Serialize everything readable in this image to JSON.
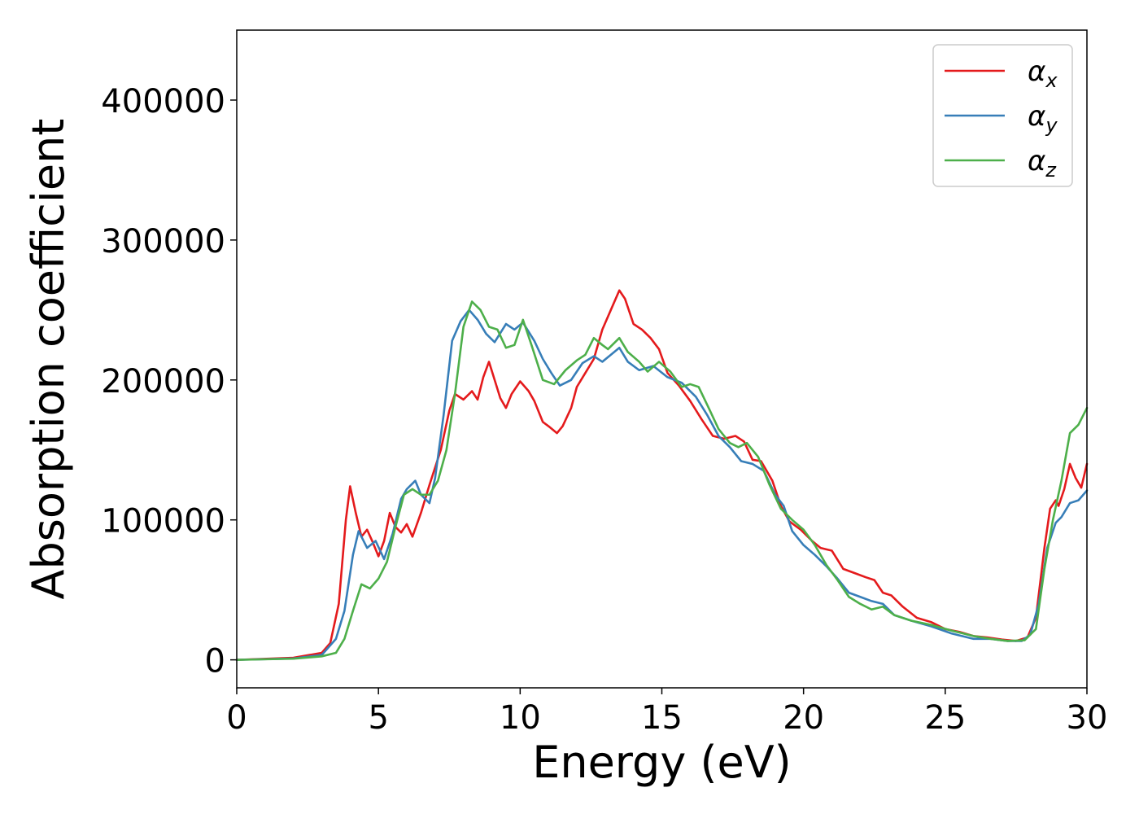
{
  "chart_data": {
    "type": "line",
    "title": "",
    "xlabel": "Energy (eV)",
    "ylabel": "Absorption coefficient",
    "xlim": [
      0,
      30
    ],
    "ylim": [
      -20000,
      450000
    ],
    "xticks": [
      0,
      5,
      10,
      15,
      20,
      25,
      30
    ],
    "xtick_labels": [
      "0",
      "5",
      "10",
      "15",
      "20",
      "25",
      "30"
    ],
    "yticks": [
      0,
      100000,
      200000,
      300000,
      400000
    ],
    "ytick_labels": [
      "0",
      "100000",
      "200000",
      "300000",
      "400000"
    ],
    "grid": false,
    "legend": "top-right",
    "series": [
      {
        "name": "α_x",
        "symbol": "α",
        "sub": "x",
        "color": "#e41a1c",
        "points": [
          [
            0,
            0
          ],
          [
            2,
            1500
          ],
          [
            3,
            5000
          ],
          [
            3.3,
            12000
          ],
          [
            3.6,
            40000
          ],
          [
            3.85,
            100000
          ],
          [
            4.0,
            124000
          ],
          [
            4.2,
            105000
          ],
          [
            4.4,
            88000
          ],
          [
            4.6,
            93000
          ],
          [
            4.8,
            84000
          ],
          [
            5.0,
            74000
          ],
          [
            5.2,
            85000
          ],
          [
            5.4,
            105000
          ],
          [
            5.6,
            95000
          ],
          [
            5.8,
            91000
          ],
          [
            6.0,
            97000
          ],
          [
            6.2,
            88000
          ],
          [
            6.5,
            105000
          ],
          [
            6.8,
            125000
          ],
          [
            7.2,
            150000
          ],
          [
            7.5,
            178000
          ],
          [
            7.7,
            190000
          ],
          [
            8.0,
            186000
          ],
          [
            8.3,
            192000
          ],
          [
            8.5,
            186000
          ],
          [
            8.7,
            202000
          ],
          [
            8.9,
            213000
          ],
          [
            9.1,
            200000
          ],
          [
            9.3,
            187000
          ],
          [
            9.5,
            180000
          ],
          [
            9.7,
            190000
          ],
          [
            10.0,
            199000
          ],
          [
            10.3,
            192000
          ],
          [
            10.5,
            185000
          ],
          [
            10.8,
            170000
          ],
          [
            11.0,
            167000
          ],
          [
            11.3,
            162000
          ],
          [
            11.5,
            167000
          ],
          [
            11.8,
            180000
          ],
          [
            12.0,
            195000
          ],
          [
            12.3,
            205000
          ],
          [
            12.6,
            215000
          ],
          [
            12.9,
            236000
          ],
          [
            13.2,
            250000
          ],
          [
            13.5,
            264000
          ],
          [
            13.7,
            258000
          ],
          [
            14.0,
            240000
          ],
          [
            14.3,
            236000
          ],
          [
            14.6,
            230000
          ],
          [
            14.9,
            222000
          ],
          [
            15.2,
            205000
          ],
          [
            15.6,
            196000
          ],
          [
            16.0,
            185000
          ],
          [
            16.4,
            172000
          ],
          [
            16.8,
            160000
          ],
          [
            17.2,
            158000
          ],
          [
            17.6,
            160000
          ],
          [
            17.9,
            156000
          ],
          [
            18.2,
            143000
          ],
          [
            18.5,
            142000
          ],
          [
            18.9,
            128000
          ],
          [
            19.2,
            110000
          ],
          [
            19.5,
            99000
          ],
          [
            19.9,
            93000
          ],
          [
            20.3,
            85000
          ],
          [
            20.6,
            80000
          ],
          [
            21.0,
            78000
          ],
          [
            21.4,
            65000
          ],
          [
            21.8,
            62000
          ],
          [
            22.2,
            59000
          ],
          [
            22.5,
            57000
          ],
          [
            22.8,
            48000
          ],
          [
            23.1,
            46000
          ],
          [
            23.5,
            38000
          ],
          [
            24.0,
            30000
          ],
          [
            24.5,
            27000
          ],
          [
            25.0,
            22000
          ],
          [
            25.5,
            20000
          ],
          [
            26.0,
            17000
          ],
          [
            26.5,
            16000
          ],
          [
            27.0,
            14500
          ],
          [
            27.5,
            13500
          ],
          [
            27.9,
            16000
          ],
          [
            28.2,
            30000
          ],
          [
            28.5,
            80000
          ],
          [
            28.7,
            108000
          ],
          [
            28.9,
            114000
          ],
          [
            29.0,
            110000
          ],
          [
            29.2,
            122000
          ],
          [
            29.4,
            140000
          ],
          [
            29.6,
            130000
          ],
          [
            29.8,
            123000
          ],
          [
            30.0,
            140000
          ]
        ]
      },
      {
        "name": "α_y",
        "symbol": "α",
        "sub": "y",
        "color": "#377eb8",
        "points": [
          [
            0,
            0
          ],
          [
            2,
            1000
          ],
          [
            3,
            3500
          ],
          [
            3.5,
            15000
          ],
          [
            3.8,
            35000
          ],
          [
            4.1,
            75000
          ],
          [
            4.3,
            92000
          ],
          [
            4.6,
            80000
          ],
          [
            4.9,
            85000
          ],
          [
            5.2,
            72000
          ],
          [
            5.5,
            90000
          ],
          [
            5.8,
            115000
          ],
          [
            6.0,
            122000
          ],
          [
            6.3,
            128000
          ],
          [
            6.5,
            118000
          ],
          [
            6.8,
            112000
          ],
          [
            7.0,
            130000
          ],
          [
            7.3,
            175000
          ],
          [
            7.6,
            228000
          ],
          [
            7.9,
            242000
          ],
          [
            8.2,
            250000
          ],
          [
            8.5,
            243000
          ],
          [
            8.8,
            233000
          ],
          [
            9.1,
            227000
          ],
          [
            9.5,
            240000
          ],
          [
            9.8,
            236000
          ],
          [
            10.1,
            241000
          ],
          [
            10.5,
            228000
          ],
          [
            10.8,
            215000
          ],
          [
            11.1,
            205000
          ],
          [
            11.4,
            196000
          ],
          [
            11.8,
            200000
          ],
          [
            12.2,
            212000
          ],
          [
            12.6,
            217000
          ],
          [
            12.9,
            213000
          ],
          [
            13.2,
            218000
          ],
          [
            13.5,
            223000
          ],
          [
            13.8,
            213000
          ],
          [
            14.2,
            207000
          ],
          [
            14.7,
            210000
          ],
          [
            15.2,
            202000
          ],
          [
            15.7,
            198000
          ],
          [
            16.2,
            188000
          ],
          [
            16.6,
            175000
          ],
          [
            17.0,
            160000
          ],
          [
            17.4,
            152000
          ],
          [
            17.8,
            142000
          ],
          [
            18.2,
            140000
          ],
          [
            18.6,
            135000
          ],
          [
            19.0,
            118000
          ],
          [
            19.3,
            110000
          ],
          [
            19.6,
            92000
          ],
          [
            20.0,
            82000
          ],
          [
            20.4,
            75000
          ],
          [
            20.8,
            67000
          ],
          [
            21.2,
            58000
          ],
          [
            21.6,
            48000
          ],
          [
            22.0,
            45000
          ],
          [
            22.4,
            42000
          ],
          [
            22.8,
            40000
          ],
          [
            23.2,
            32000
          ],
          [
            23.8,
            28000
          ],
          [
            24.5,
            24000
          ],
          [
            25.2,
            19000
          ],
          [
            26.0,
            15000
          ],
          [
            26.6,
            15000
          ],
          [
            27.2,
            13500
          ],
          [
            27.7,
            13500
          ],
          [
            28.0,
            18000
          ],
          [
            28.3,
            40000
          ],
          [
            28.6,
            80000
          ],
          [
            28.9,
            98000
          ],
          [
            29.1,
            102000
          ],
          [
            29.4,
            112000
          ],
          [
            29.7,
            114000
          ],
          [
            30.0,
            121000
          ]
        ]
      },
      {
        "name": "α_z",
        "symbol": "α",
        "sub": "z",
        "color": "#4daf4a",
        "points": [
          [
            0,
            0
          ],
          [
            2,
            800
          ],
          [
            3,
            2500
          ],
          [
            3.5,
            5000
          ],
          [
            3.8,
            15000
          ],
          [
            4.1,
            35000
          ],
          [
            4.4,
            54000
          ],
          [
            4.7,
            51000
          ],
          [
            5.0,
            58000
          ],
          [
            5.3,
            70000
          ],
          [
            5.6,
            95000
          ],
          [
            5.9,
            118000
          ],
          [
            6.2,
            122000
          ],
          [
            6.5,
            118000
          ],
          [
            6.8,
            118000
          ],
          [
            7.1,
            128000
          ],
          [
            7.4,
            150000
          ],
          [
            7.7,
            190000
          ],
          [
            8.0,
            238000
          ],
          [
            8.3,
            256000
          ],
          [
            8.6,
            250000
          ],
          [
            8.9,
            238000
          ],
          [
            9.2,
            236000
          ],
          [
            9.5,
            223000
          ],
          [
            9.8,
            225000
          ],
          [
            10.1,
            243000
          ],
          [
            10.4,
            225000
          ],
          [
            10.8,
            200000
          ],
          [
            11.2,
            197000
          ],
          [
            11.6,
            207000
          ],
          [
            12.0,
            214000
          ],
          [
            12.3,
            218000
          ],
          [
            12.6,
            230000
          ],
          [
            12.9,
            225000
          ],
          [
            13.1,
            222000
          ],
          [
            13.5,
            230000
          ],
          [
            13.8,
            220000
          ],
          [
            14.2,
            213000
          ],
          [
            14.5,
            206000
          ],
          [
            14.9,
            213000
          ],
          [
            15.3,
            206000
          ],
          [
            15.7,
            195000
          ],
          [
            16.0,
            197000
          ],
          [
            16.3,
            195000
          ],
          [
            16.7,
            178000
          ],
          [
            17.0,
            165000
          ],
          [
            17.4,
            155000
          ],
          [
            17.7,
            152000
          ],
          [
            18.0,
            155000
          ],
          [
            18.4,
            145000
          ],
          [
            18.8,
            125000
          ],
          [
            19.2,
            108000
          ],
          [
            19.6,
            100000
          ],
          [
            20.0,
            93000
          ],
          [
            20.4,
            82000
          ],
          [
            20.8,
            68000
          ],
          [
            21.2,
            57000
          ],
          [
            21.6,
            45000
          ],
          [
            22.0,
            40000
          ],
          [
            22.4,
            36000
          ],
          [
            22.8,
            38000
          ],
          [
            23.2,
            32000
          ],
          [
            23.8,
            28000
          ],
          [
            24.5,
            25000
          ],
          [
            25.2,
            21000
          ],
          [
            26.0,
            17000
          ],
          [
            26.6,
            15000
          ],
          [
            27.2,
            13500
          ],
          [
            27.8,
            14000
          ],
          [
            28.2,
            22000
          ],
          [
            28.5,
            65000
          ],
          [
            28.8,
            100000
          ],
          [
            29.1,
            128000
          ],
          [
            29.4,
            162000
          ],
          [
            29.7,
            168000
          ],
          [
            30.0,
            180000
          ]
        ]
      }
    ]
  }
}
